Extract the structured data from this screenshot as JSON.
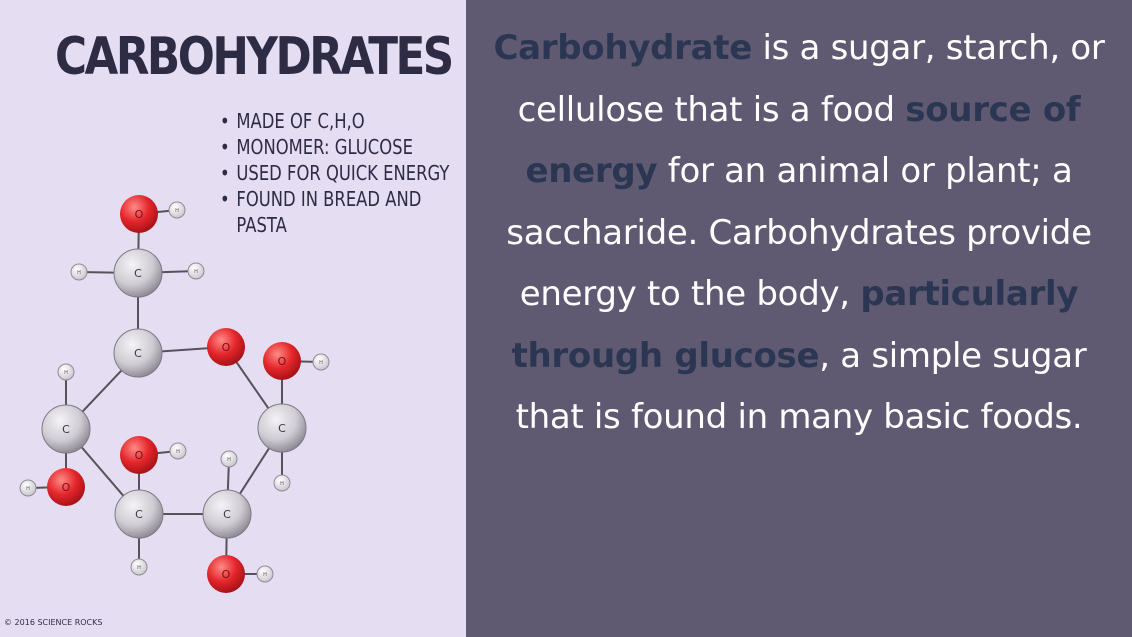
{
  "poster": {
    "title": "CARBOHYDRATES",
    "facts": [
      {
        "bullet": "•",
        "text": "MADE OF C,H,O"
      },
      {
        "bullet": "•",
        "text": "MONOMER: GLUCOSE"
      },
      {
        "bullet": "•",
        "text": "USED FOR QUICK ENERGY"
      },
      {
        "bullet": "•",
        "text": "FOUND IN BREAD AND"
      },
      {
        "bullet": "",
        "text": "PASTA"
      }
    ],
    "molecule_labels": {
      "carbon": "C",
      "oxygen": "O",
      "hydrogen": "H"
    },
    "copyright": "© 2016 SCIENCE ROCKS"
  },
  "definition": {
    "term": "Carbohydrate",
    "part1": " is a sugar, starch, or cellulose that is a food ",
    "highlight1": "source of energy",
    "part2": " for an animal or plant; a saccharide. Carbohydrates provide energy to the body, ",
    "highlight2": "particularly through glucose",
    "part3": ", a simple sugar that is found in many basic foods."
  },
  "colors": {
    "left_bg": "#e5def3",
    "right_bg": "#5f5972",
    "highlight_text": "#2b3652",
    "oxygen_atom": "#e0262b",
    "carbon_atom": "#c9c6cd"
  }
}
